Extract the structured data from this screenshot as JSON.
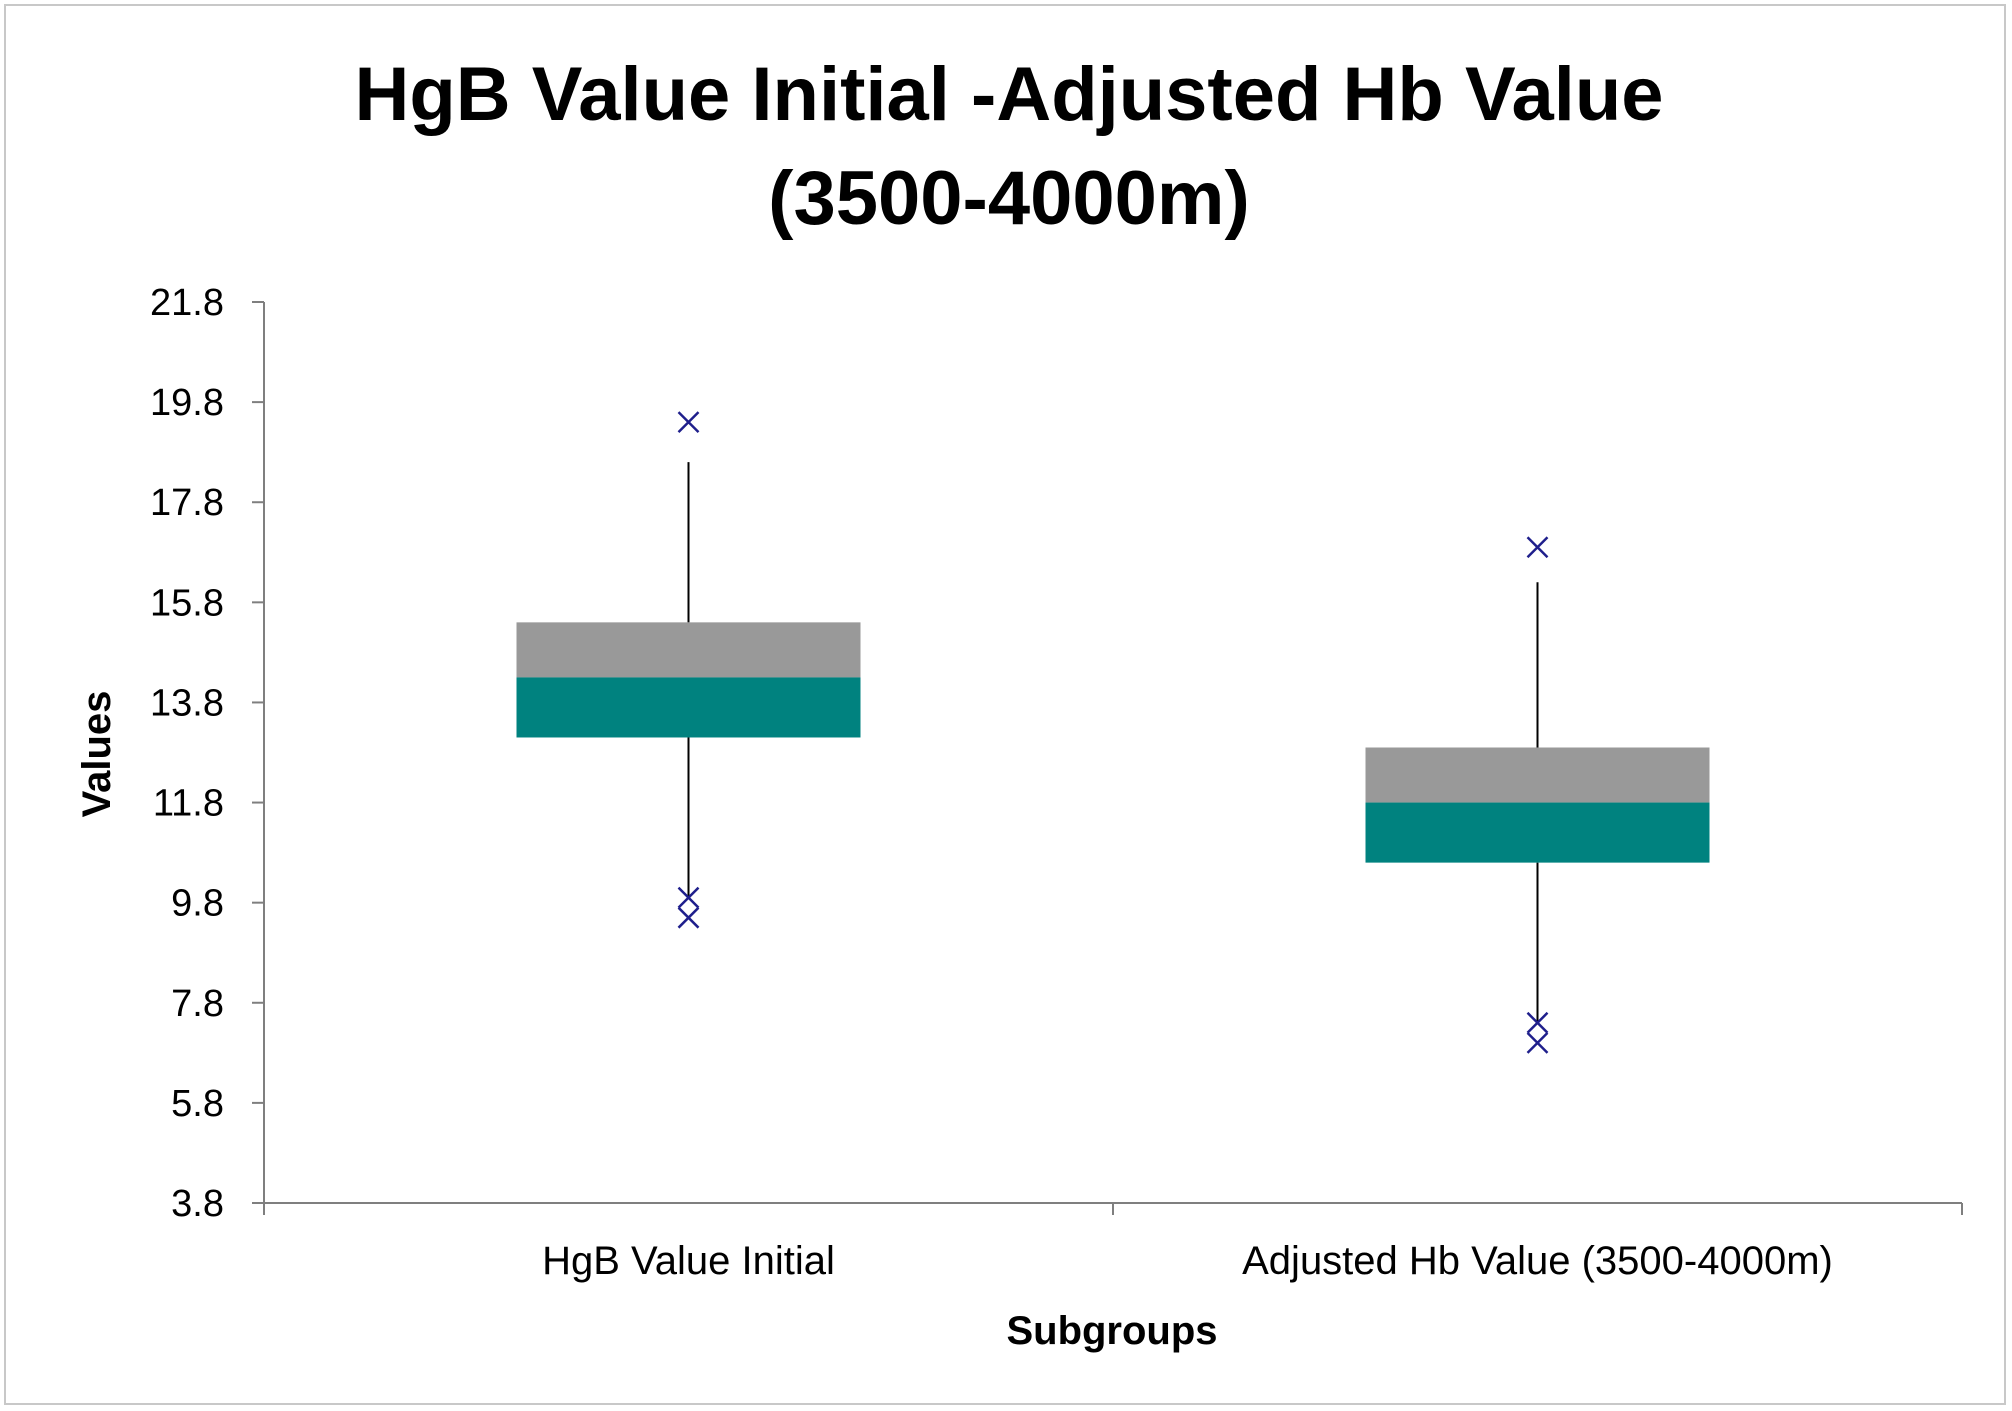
{
  "chart_data": {
    "type": "boxplot",
    "title_lines": [
      "HgB Value Initial -Adjusted Hb Value",
      "(3500-4000m)"
    ],
    "xlabel": "Subgroups",
    "ylabel": "Values",
    "ylim": [
      3.8,
      21.8
    ],
    "yticks": [
      "21.8",
      "19.8",
      "17.8",
      "15.8",
      "13.8",
      "11.8",
      "9.8",
      "7.8",
      "5.8",
      "3.8"
    ],
    "categories": [
      "HgB Value Initial",
      "Adjusted Hb Value (3500-4000m)"
    ],
    "grid": false,
    "colors": {
      "upper_box": "#999999",
      "lower_box": "#00827f",
      "whisker": "#000000",
      "outlier": "#1f1f8c",
      "axis": "#7f7f7f"
    },
    "boxes": [
      {
        "category": "HgB Value Initial",
        "whisker_low": 9.9,
        "q1": 13.1,
        "median": 14.3,
        "q3": 15.4,
        "whisker_high": 18.6,
        "outliers": [
          19.4,
          9.9,
          9.5
        ]
      },
      {
        "category": "Adjusted Hb Value (3500-4000m)",
        "whisker_low": 7.4,
        "q1": 10.6,
        "median": 11.8,
        "q3": 12.9,
        "whisker_high": 16.2,
        "outliers": [
          16.9,
          7.4,
          7.0
        ]
      }
    ]
  }
}
